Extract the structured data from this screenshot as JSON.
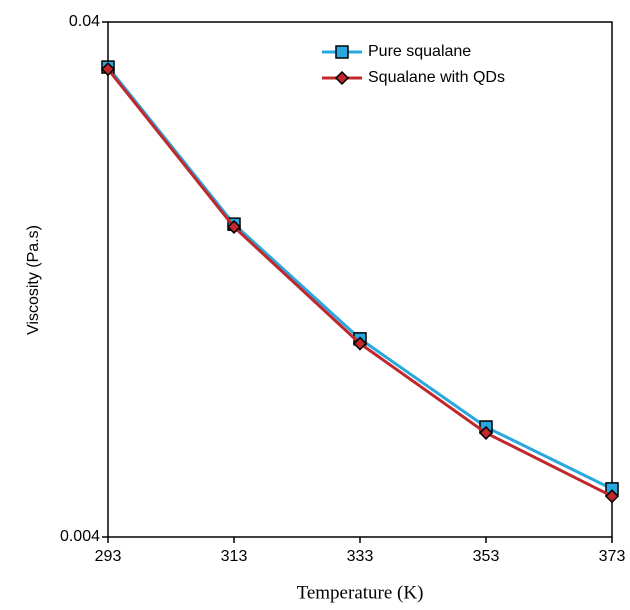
{
  "chart_data": {
    "type": "line",
    "x_label": "Temperature (K)",
    "y_label": "Viscosity (Pa.s)",
    "x": [
      293,
      313,
      333,
      353,
      373
    ],
    "series": [
      {
        "name": "Pure squalane",
        "color": "#29a8e0",
        "marker": "square",
        "values": [
          0.0327,
          0.0162,
          0.0097,
          0.00654,
          0.00496
        ]
      },
      {
        "name": "Squalane with QDs",
        "color": "#c0282d",
        "marker": "diamond",
        "values": [
          0.0324,
          0.016,
          0.0095,
          0.00637,
          0.0048
        ]
      }
    ],
    "xlim": [
      293,
      373
    ],
    "xticks": [
      293,
      313,
      333,
      353,
      373
    ],
    "ylim": [
      0.004,
      0.04
    ],
    "yticks": [
      0.004,
      0.04
    ],
    "y_log": true,
    "grid": false,
    "legend": "upper right"
  }
}
